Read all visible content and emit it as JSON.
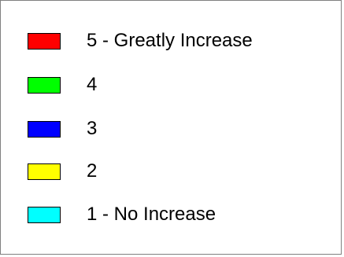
{
  "chart_data": {
    "type": "legend",
    "legend": [
      {
        "label": "5 - Greatly Increase",
        "color": "#ff0000"
      },
      {
        "label": "4",
        "color": "#00ff00"
      },
      {
        "label": "3",
        "color": "#0000ff"
      },
      {
        "label": "2",
        "color": "#ffff00"
      },
      {
        "label": "1 - No Increase",
        "color": "#00ffff"
      }
    ]
  }
}
